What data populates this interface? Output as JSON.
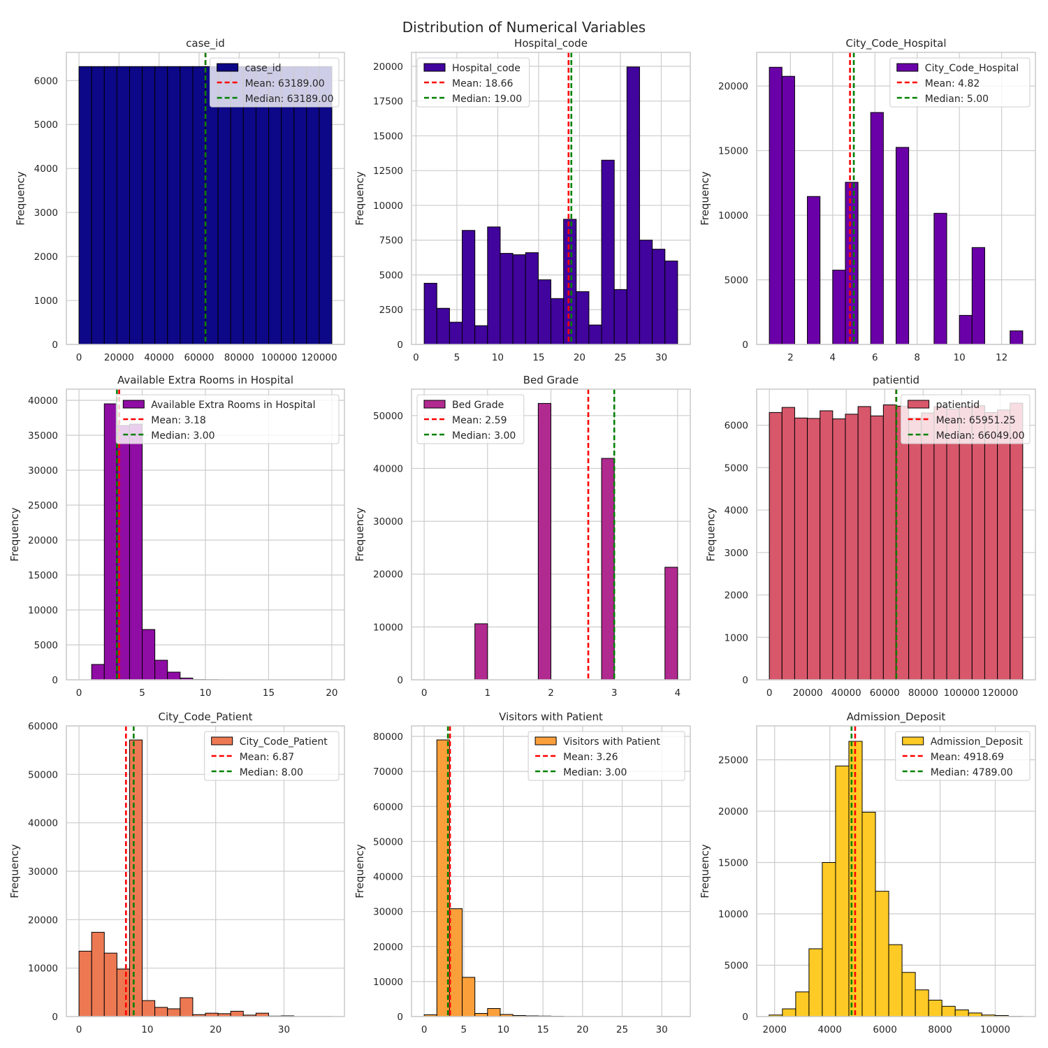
{
  "figure": {
    "title": "Distribution of Numerical Variables"
  },
  "colors": {
    "grid": "#cccccc",
    "spine": "#cccccc",
    "edge": "#000000",
    "mean": "#ff0000",
    "median": "#008000",
    "legend_border": "#cccccc"
  },
  "chart_data": [
    {
      "type": "bar",
      "title": "case_id",
      "xlabel": "",
      "ylabel": "Frequency",
      "color": "#0d0887",
      "xlim": [
        -6311,
        132619
      ],
      "xticks": [
        0,
        20000,
        40000,
        60000,
        80000,
        100000,
        120000
      ],
      "ylim": [
        0,
        6640
      ],
      "yticks": [
        0,
        1000,
        2000,
        3000,
        4000,
        5000,
        6000
      ],
      "bin_edges": [
        1,
        6318,
        12635,
        18952,
        25269,
        31586,
        37903,
        44220,
        50537,
        56854,
        63171,
        69488,
        75805,
        82122,
        88439,
        94756,
        101073,
        107390,
        113707,
        120024,
        126341
      ],
      "values": [
        6318,
        6318,
        6318,
        6318,
        6318,
        6318,
        6318,
        6318,
        6318,
        6318,
        6318,
        6318,
        6318,
        6318,
        6318,
        6318,
        6318,
        6318,
        6318,
        6318
      ],
      "mean": 63189.0,
      "median": 63189.0,
      "legend_loc": "upper right",
      "legend": {
        "hist": "case_id",
        "mean": "Mean: 63189.00",
        "median": "Median: 63189.00"
      }
    },
    {
      "type": "bar",
      "title": "Hospital_code",
      "xlabel": "",
      "ylabel": "Frequency",
      "color": "#41049d",
      "xlim": [
        -0.55,
        33.55
      ],
      "xticks": [
        0,
        5,
        10,
        15,
        20,
        25,
        30
      ],
      "ylim": [
        0,
        21000
      ],
      "yticks": [
        0,
        2500,
        5000,
        7500,
        10000,
        12500,
        15000,
        17500,
        20000
      ],
      "bin_edges": [
        1,
        2.55,
        4.1,
        5.65,
        7.2,
        8.75,
        10.3,
        11.85,
        13.4,
        14.95,
        16.5,
        18.05,
        19.6,
        21.15,
        22.7,
        24.25,
        25.8,
        27.35,
        28.9,
        30.45,
        32
      ],
      "values": [
        4400,
        2600,
        1600,
        8200,
        1350,
        8450,
        6550,
        6450,
        6600,
        4650,
        3300,
        9000,
        3800,
        1400,
        13250,
        3950,
        19950,
        7500,
        6850,
        6000
      ],
      "mean": 18.66,
      "median": 19.0,
      "legend_loc": "upper left",
      "legend": {
        "hist": "Hospital_code",
        "mean": "Mean: 18.66",
        "median": "Median: 19.00"
      }
    },
    {
      "type": "bar",
      "title": "City_Code_Hospital",
      "xlabel": "",
      "ylabel": "Frequency",
      "color": "#6a00a8",
      "xlim": [
        0.4,
        13.6
      ],
      "xticks": [
        2,
        4,
        6,
        8,
        10,
        12
      ],
      "ylim": [
        0,
        22600
      ],
      "yticks": [
        0,
        5000,
        10000,
        15000,
        20000
      ],
      "bin_edges": [
        1,
        1.6,
        2.2,
        2.8,
        3.4,
        4.0,
        4.6,
        5.2,
        5.8,
        6.4,
        7.0,
        7.6,
        8.2,
        8.8,
        9.4,
        10.0,
        10.6,
        11.2,
        11.8,
        12.4,
        13.0
      ],
      "values": [
        21450,
        20750,
        0,
        11450,
        0,
        5750,
        12550,
        0,
        17950,
        0,
        15250,
        0,
        0,
        10150,
        0,
        2250,
        7500,
        0,
        0,
        1050
      ],
      "mean": 4.82,
      "median": 5.0,
      "legend_loc": "upper right",
      "legend": {
        "hist": "City_Code_Hospital",
        "mean": "Mean: 4.82",
        "median": "Median: 5.00"
      }
    },
    {
      "type": "bar",
      "title": "Available Extra Rooms in Hospital",
      "xlabel": "",
      "ylabel": "Frequency",
      "color": "#8f0da4",
      "xlim": [
        -1.0,
        21.0
      ],
      "xticks": [
        0,
        5,
        10,
        15,
        20
      ],
      "ylim": [
        0,
        41600
      ],
      "yticks": [
        0,
        5000,
        10000,
        15000,
        20000,
        25000,
        30000,
        35000,
        40000
      ],
      "bin_edges": [
        0,
        1,
        2,
        3,
        4,
        5,
        6,
        7,
        8,
        9,
        10,
        11,
        12,
        13,
        14,
        15,
        16,
        17,
        18,
        19,
        20
      ],
      "values": [
        0,
        2200,
        39500,
        36400,
        36600,
        7200,
        2800,
        1100,
        250,
        50,
        30,
        10,
        5,
        5,
        3,
        3,
        2,
        2,
        1,
        1
      ],
      "mean": 3.18,
      "median": 3.0,
      "legend_loc": "upper right",
      "legend": {
        "hist": "Available Extra Rooms in Hospital",
        "mean": "Mean: 3.18",
        "median": "Median: 3.00"
      }
    },
    {
      "type": "bar",
      "title": "Bed Grade",
      "xlabel": "",
      "ylabel": "Frequency",
      "color": "#b12a90",
      "xlim": [
        -0.2,
        4.2
      ],
      "xticks": [
        0,
        1,
        2,
        3,
        4
      ],
      "ylim": [
        0,
        55000
      ],
      "yticks": [
        0,
        10000,
        20000,
        30000,
        40000,
        50000
      ],
      "bin_edges": [
        0,
        0.2,
        0.4,
        0.6,
        0.8,
        1.0,
        1.2,
        1.4,
        1.6,
        1.8,
        2.0,
        2.2,
        2.4,
        2.6,
        2.8,
        3.0,
        3.2,
        3.4,
        3.6,
        3.8,
        4.0
      ],
      "values": [
        0,
        0,
        0,
        0,
        10600,
        0,
        0,
        0,
        0,
        52300,
        0,
        0,
        0,
        0,
        41900,
        0,
        0,
        0,
        0,
        21300
      ],
      "mean": 2.59,
      "median": 3.0,
      "legend_loc": "upper left",
      "legend": {
        "hist": "Bed Grade",
        "mean": "Mean: 2.59",
        "median": "Median: 3.00"
      }
    },
    {
      "type": "bar",
      "title": "patientid",
      "xlabel": "",
      "ylabel": "Frequency",
      "color": "#d8576b",
      "xlim": [
        -6589,
        138375
      ],
      "xticks": [
        0,
        20000,
        40000,
        60000,
        80000,
        100000,
        120000
      ],
      "ylim": [
        0,
        6850
      ],
      "yticks": [
        0,
        1000,
        2000,
        3000,
        4000,
        5000,
        6000
      ],
      "bin_edges": [
        3,
        6592,
        13181,
        19770,
        26359,
        32948,
        39537,
        46126,
        52715,
        59304,
        65893,
        72482,
        79071,
        85660,
        92249,
        98838,
        105427,
        112016,
        118605,
        125194,
        131783
      ],
      "values": [
        6300,
        6420,
        6170,
        6160,
        6340,
        6150,
        6260,
        6440,
        6220,
        6480,
        6450,
        6170,
        6290,
        6440,
        6380,
        6440,
        6460,
        6300,
        6360,
        6520
      ],
      "mean": 65951.25,
      "median": 66049.0,
      "legend_loc": "upper right",
      "legend": {
        "hist": "patientid",
        "mean": "Mean: 65951.25",
        "median": "Median: 66049.00"
      }
    },
    {
      "type": "bar",
      "title": "City_Code_Patient",
      "xlabel": "",
      "ylabel": "Frequency",
      "color": "#ed7953",
      "xlim": [
        -1.85,
        38.85
      ],
      "xticks": [
        0,
        10,
        20,
        30
      ],
      "ylim": [
        0,
        60000
      ],
      "yticks": [
        0,
        10000,
        20000,
        30000,
        40000,
        50000,
        60000
      ],
      "bin_edges": [
        0,
        1.85,
        3.7,
        5.55,
        7.4,
        9.25,
        11.1,
        12.95,
        14.8,
        16.65,
        18.5,
        20.35,
        22.2,
        24.05,
        25.9,
        27.75,
        29.6,
        31.45,
        33.3,
        35.15,
        37.0
      ],
      "values": [
        13500,
        17400,
        13100,
        9800,
        57100,
        3300,
        1900,
        1600,
        3900,
        400,
        700,
        600,
        1100,
        300,
        700,
        100,
        150,
        20,
        20,
        20
      ],
      "mean": 6.87,
      "median": 8.0,
      "legend_loc": "upper right",
      "legend": {
        "hist": "City_Code_Patient",
        "mean": "Mean: 6.87",
        "median": "Median: 8.00"
      }
    },
    {
      "type": "bar",
      "title": "Visitors with Patient",
      "xlabel": "",
      "ylabel": "Frequency",
      "color": "#fb9f3a",
      "xlim": [
        -1.6,
        33.6
      ],
      "xticks": [
        0,
        5,
        10,
        15,
        20,
        25,
        30
      ],
      "ylim": [
        0,
        83000
      ],
      "yticks": [
        0,
        10000,
        20000,
        30000,
        40000,
        50000,
        60000,
        70000,
        80000
      ],
      "bin_edges": [
        0,
        1.6,
        3.2,
        4.8,
        6.4,
        8.0,
        9.6,
        11.2,
        12.8,
        14.4,
        16.0,
        17.6,
        19.2,
        20.8,
        22.4,
        24.0,
        25.6,
        27.2,
        28.8,
        30.4,
        32.0
      ],
      "values": [
        500,
        79000,
        30800,
        11200,
        900,
        2300,
        600,
        300,
        200,
        150,
        100,
        20,
        10,
        10,
        10,
        10,
        5,
        5,
        5,
        5
      ],
      "mean": 3.26,
      "median": 3.0,
      "legend_loc": "upper right",
      "legend": {
        "hist": "Visitors with Patient",
        "mean": "Mean: 3.26",
        "median": "Median: 3.00"
      }
    },
    {
      "type": "bar",
      "title": "Admission_Deposit",
      "xlabel": "",
      "ylabel": "Frequency",
      "color": "#fdca26",
      "xlim": [
        1348,
        11457
      ],
      "xticks": [
        2000,
        4000,
        6000,
        8000,
        10000
      ],
      "ylim": [
        0,
        28300
      ],
      "yticks": [
        0,
        5000,
        10000,
        15000,
        20000,
        25000
      ],
      "bin_edges": [
        1800,
        2282,
        2764,
        3246,
        3728,
        4210,
        4692,
        5174,
        5656,
        6138,
        6620,
        7102,
        7584,
        8066,
        8548,
        9030,
        9512,
        9994,
        10476,
        10958,
        11008
      ],
      "values": [
        150,
        750,
        2400,
        6600,
        15000,
        24400,
        26800,
        19900,
        12200,
        7000,
        4300,
        2600,
        1600,
        1000,
        650,
        350,
        150,
        100,
        20,
        10
      ],
      "mean": 4918.69,
      "median": 4789.0,
      "legend_loc": "upper right",
      "legend": {
        "hist": "Admission_Deposit",
        "mean": "Mean: 4918.69",
        "median": "Median: 4789.00"
      }
    }
  ]
}
